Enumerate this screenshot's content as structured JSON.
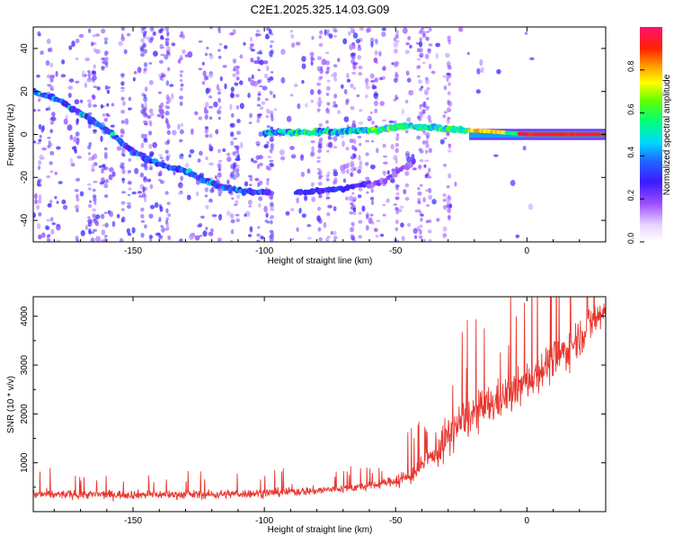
{
  "title": "C2E1.2025.325.14.03.G09",
  "chart_data": [
    {
      "type": "heatmap",
      "name": "spectrogram",
      "xlabel": "Height of straight line (km)",
      "ylabel": "Frequency (Hz)",
      "xlim": [
        -188,
        30
      ],
      "ylim": [
        -50,
        50
      ],
      "xticks": [
        -150,
        -100,
        -50,
        0
      ],
      "yticks": [
        -40,
        -20,
        0,
        20,
        40
      ],
      "colorbar": {
        "label": "Normalized spectral amplitude",
        "range": [
          0,
          1
        ],
        "ticks": [
          0.0,
          0.2,
          0.4,
          0.6,
          0.8
        ],
        "tick_labels": [
          "0.0",
          "0.2",
          "0.4",
          "0.6",
          "0.8"
        ]
      },
      "main_trace": [
        [
          -188,
          20
        ],
        [
          -180,
          17
        ],
        [
          -170,
          10
        ],
        [
          -160,
          2
        ],
        [
          -150,
          -8
        ],
        [
          -140,
          -14
        ],
        [
          -130,
          -17
        ],
        [
          -120,
          -23
        ],
        [
          -110,
          -26
        ],
        [
          -100,
          -27
        ]
      ],
      "secondary_trace": [
        [
          -87,
          -27
        ],
        [
          -78,
          -26
        ],
        [
          -70,
          -25
        ],
        [
          -62,
          -23
        ]
      ],
      "carrier_trace": [
        [
          -100,
          1
        ],
        [
          -80,
          1
        ],
        [
          -60,
          2
        ],
        [
          -45,
          4
        ],
        [
          -35,
          3
        ],
        [
          -25,
          2
        ],
        [
          -15,
          1.5
        ],
        [
          -5,
          0.5
        ],
        [
          0,
          0
        ],
        [
          30,
          0
        ]
      ]
    },
    {
      "type": "line",
      "name": "snr",
      "xlabel": "Height of straight line (km)",
      "ylabel": "SNR (10 * v/v)",
      "xlim": [
        -188,
        30
      ],
      "ylim": [
        0,
        4400
      ],
      "xticks": [
        -150,
        -100,
        -50,
        0
      ],
      "yticks": [
        1000,
        2000,
        3000,
        4000
      ],
      "color": "#e8362f",
      "trend": [
        [
          -188,
          350
        ],
        [
          -120,
          350
        ],
        [
          -100,
          380
        ],
        [
          -80,
          430
        ],
        [
          -60,
          520
        ],
        [
          -45,
          700
        ],
        [
          -35,
          1200
        ],
        [
          -25,
          1850
        ],
        [
          -15,
          2150
        ],
        [
          -5,
          2450
        ],
        [
          5,
          2900
        ],
        [
          15,
          3300
        ],
        [
          25,
          3900
        ],
        [
          30,
          4100
        ]
      ]
    }
  ]
}
